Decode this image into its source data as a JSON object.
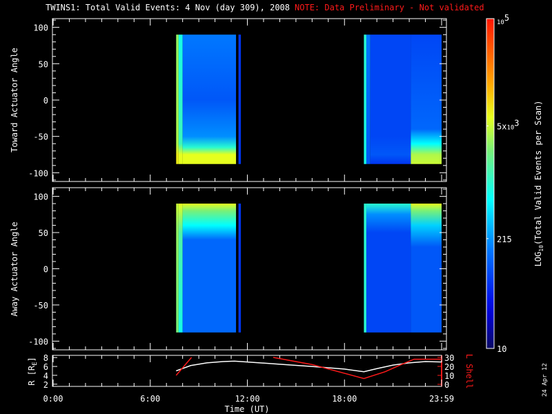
{
  "chart_data": {
    "type": "heatmap",
    "title": "TWINS1: Total Valid Events:  4 Nov (day 309), 2008",
    "note": "NOTE: Data Preliminary - Not validated",
    "xlabel": "Time (UT)",
    "xlim": [
      0,
      24
    ],
    "x_ticks": [
      {
        "v": 0,
        "label": "0:00"
      },
      {
        "v": 6,
        "label": "6:00"
      },
      {
        "v": 12,
        "label": "12:00"
      },
      {
        "v": 18,
        "label": "18:00"
      },
      {
        "v": 24,
        "label": "23:59"
      }
    ],
    "colorbar": {
      "label_main": "LOG",
      "label_sub": "10",
      "label_rest": "(Total Valid Events per Scan)",
      "range_log10": [
        1,
        5
      ],
      "ticks": [
        {
          "v": 5,
          "base": "10",
          "exp": "5",
          "mant": ""
        },
        {
          "v": 3.699,
          "base": "10",
          "exp": "3",
          "mant": "5x"
        },
        {
          "v": 2.332,
          "base": "215",
          "exp": "",
          "mant": ""
        },
        {
          "v": 1,
          "base": "10",
          "exp": "",
          "mant": ""
        }
      ]
    },
    "panels": [
      {
        "ylabel": "Toward Actuator Angle",
        "ylim": [
          -112,
          112
        ],
        "y_ticks": [
          100,
          50,
          0,
          -50,
          -100
        ],
        "columns": [
          {
            "t": [
              7.6,
              7.75
            ],
            "profile": [
              [
                90,
                3.5
              ],
              [
                -60,
                3.6
              ],
              [
                -75,
                3.9
              ],
              [
                -88,
                3.9
              ]
            ]
          },
          {
            "t": [
              7.75,
              8.0
            ],
            "profile": [
              [
                90,
                2.9
              ],
              [
                -60,
                3.1
              ],
              [
                -75,
                3.8
              ],
              [
                -88,
                3.8
              ]
            ]
          },
          {
            "t": [
              8.0,
              11.3
            ],
            "profile": [
              [
                90,
                2.2
              ],
              [
                0,
                2.0
              ],
              [
                -50,
                2.3
              ],
              [
                -65,
                3.0
              ],
              [
                -75,
                3.8
              ],
              [
                -88,
                3.8
              ]
            ]
          },
          {
            "t": [
              11.45,
              11.6
            ],
            "profile": [
              [
                90,
                1.8
              ],
              [
                -88,
                1.8
              ]
            ]
          },
          {
            "t": [
              19.2,
              19.35
            ],
            "profile": [
              [
                90,
                3.0
              ],
              [
                -88,
                2.9
              ]
            ]
          },
          {
            "t": [
              19.35,
              19.6
            ],
            "profile": [
              [
                90,
                2.2
              ],
              [
                -88,
                2.0
              ]
            ]
          },
          {
            "t": [
              19.6,
              22.1
            ],
            "profile": [
              [
                90,
                1.9
              ],
              [
                -50,
                1.9
              ],
              [
                -75,
                2.0
              ],
              [
                -88,
                1.8
              ]
            ]
          },
          {
            "t": [
              22.1,
              24
            ],
            "profile": [
              [
                90,
                1.9
              ],
              [
                -40,
                2.1
              ],
              [
                -60,
                2.8
              ],
              [
                -75,
                3.6
              ],
              [
                -88,
                3.7
              ]
            ]
          }
        ]
      },
      {
        "ylabel": "Away Actuator Angle",
        "ylim": [
          -112,
          112
        ],
        "y_ticks": [
          100,
          50,
          0,
          -50,
          -100
        ],
        "columns": [
          {
            "t": [
              7.6,
              7.75
            ],
            "profile": [
              [
                90,
                3.7
              ],
              [
                60,
                3.5
              ],
              [
                -88,
                3.4
              ]
            ]
          },
          {
            "t": [
              7.75,
              8.0
            ],
            "profile": [
              [
                90,
                3.8
              ],
              [
                50,
                3.2
              ],
              [
                -88,
                2.9
              ]
            ]
          },
          {
            "t": [
              8.0,
              11.3
            ],
            "profile": [
              [
                90,
                3.8
              ],
              [
                80,
                3.4
              ],
              [
                60,
                2.8
              ],
              [
                40,
                2.1
              ],
              [
                -88,
                2.1
              ]
            ]
          },
          {
            "t": [
              11.45,
              11.6
            ],
            "profile": [
              [
                90,
                1.8
              ],
              [
                -88,
                1.8
              ]
            ]
          },
          {
            "t": [
              19.2,
              19.35
            ],
            "profile": [
              [
                90,
                3.0
              ],
              [
                -88,
                3.0
              ]
            ]
          },
          {
            "t": [
              19.35,
              22.1
            ],
            "profile": [
              [
                90,
                3.0
              ],
              [
                75,
                2.3
              ],
              [
                50,
                1.9
              ],
              [
                -88,
                1.9
              ]
            ]
          },
          {
            "t": [
              22.1,
              24
            ],
            "profile": [
              [
                90,
                3.8
              ],
              [
                80,
                3.4
              ],
              [
                60,
                2.6
              ],
              [
                30,
                2.0
              ],
              [
                -88,
                2.0
              ]
            ]
          }
        ]
      }
    ],
    "orbit": {
      "ylabel_left": "R [R",
      "ylabel_left_sub": "E",
      "ylabel_left_end": "]",
      "ylabel_right": "L Shell",
      "ylim_left": [
        1.5,
        8.5
      ],
      "ylim_right": [
        0,
        30
      ],
      "left_ticks": [
        2,
        4,
        6,
        8
      ],
      "right_ticks": [
        0,
        10,
        20,
        30
      ],
      "R": [
        [
          7.6,
          5.0
        ],
        [
          8.5,
          6.2
        ],
        [
          9.5,
          6.8
        ],
        [
          10.5,
          7.1
        ],
        [
          11.2,
          7.2
        ],
        [
          12,
          7.0
        ],
        [
          14,
          6.5
        ],
        [
          16,
          6.0
        ],
        [
          18,
          5.4
        ],
        [
          19.2,
          4.8
        ],
        [
          20,
          5.5
        ],
        [
          21,
          6.3
        ],
        [
          22,
          6.8
        ],
        [
          23,
          7.1
        ],
        [
          24,
          7.0
        ]
      ],
      "L_shell": [
        [
          [
            7.6,
            10
          ],
          [
            8.55,
            30
          ]
        ],
        [
          [
            13.6,
            30
          ],
          [
            16,
            22
          ],
          [
            19.2,
            6.5
          ],
          [
            20.5,
            14
          ],
          [
            21.5,
            22
          ],
          [
            22.3,
            28
          ],
          [
            24,
            28
          ]
        ]
      ]
    },
    "colors": {
      "note": "#ff1a1a",
      "lshell": "#ff1a1a",
      "R": "#ffffff"
    },
    "date_stamp": "24 Apr 12"
  }
}
